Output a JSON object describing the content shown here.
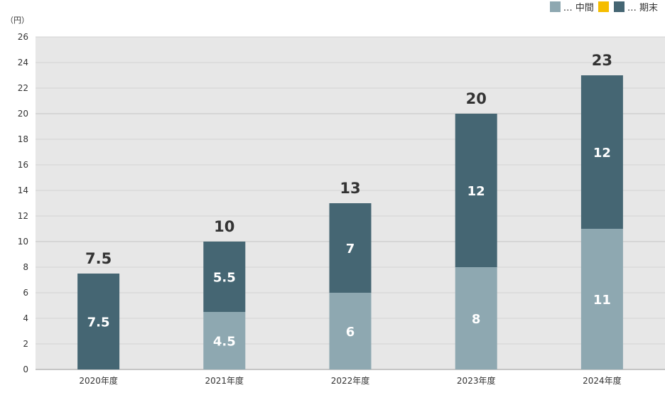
{
  "chart_data": {
    "type": "bar",
    "stacked": true,
    "unit_label": "（円）",
    "categories": [
      "2020年度",
      "2021年度",
      "2022年度",
      "2023年度",
      "2024年度"
    ],
    "series": [
      {
        "name": "中間",
        "legend_label": "… 中間",
        "color": "#8ea8b1",
        "values": [
          0,
          4.5,
          6,
          8,
          11
        ]
      },
      {
        "name": "期末",
        "legend_label": "… 期末",
        "color": "#456673",
        "values": [
          7.5,
          5.5,
          7,
          12,
          12
        ]
      }
    ],
    "totals": [
      7.5,
      10,
      13,
      20,
      23
    ],
    "segment_labels": {
      "中間": [
        "",
        "4.5",
        "6",
        "8",
        "11"
      ],
      "期末": [
        "7.5",
        "5.5",
        "7",
        "12",
        "12"
      ]
    },
    "total_labels": [
      "7.5",
      "10",
      "13",
      "20",
      "23"
    ],
    "legend_extra_color": "#f5bd00",
    "ylim": [
      0,
      26
    ],
    "yticks": [
      0,
      2,
      4,
      6,
      8,
      10,
      12,
      14,
      16,
      18,
      20,
      22,
      24,
      26
    ],
    "grid": true,
    "plot_background": "#e7e7e7"
  }
}
